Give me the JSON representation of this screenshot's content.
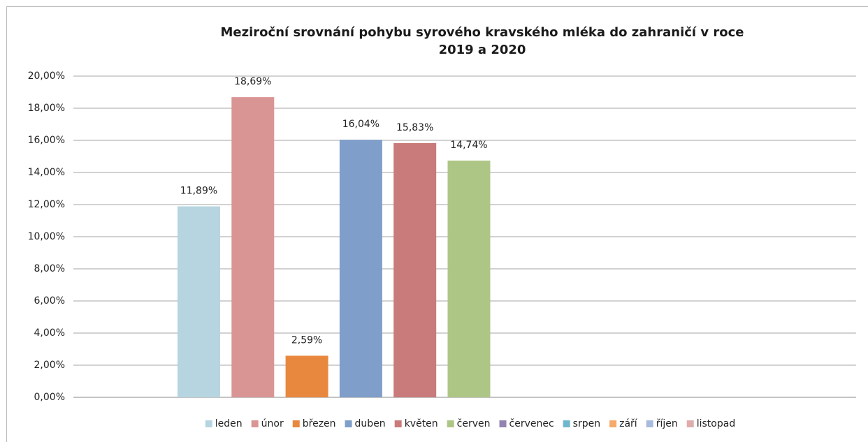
{
  "chart_data": {
    "type": "bar",
    "title": "Meziroční srovnání pohybu syrového kravského mléka do zahraničí v roce 2019 a 2020",
    "categories": [
      null
    ],
    "series": [
      {
        "name": "leden",
        "color": "#b7d5e0",
        "values": [
          11.89
        ],
        "value_labels": [
          "11,89%"
        ]
      },
      {
        "name": "únor",
        "color": "#d99594",
        "values": [
          18.69
        ],
        "value_labels": [
          "18,69%"
        ]
      },
      {
        "name": "březen",
        "color": "#e8883f",
        "values": [
          2.59
        ],
        "value_labels": [
          "2,59%"
        ]
      },
      {
        "name": "duben",
        "color": "#7f9ec9",
        "values": [
          16.04
        ],
        "value_labels": [
          "16,04%"
        ]
      },
      {
        "name": "květen",
        "color": "#c87b7a",
        "values": [
          15.83
        ],
        "value_labels": [
          "15,83%"
        ]
      },
      {
        "name": "červen",
        "color": "#adc686",
        "values": [
          14.74
        ],
        "value_labels": [
          "14,74%"
        ]
      },
      {
        "name": "červenec",
        "color": "#9383b1",
        "values": [
          null
        ],
        "value_labels": [
          null
        ]
      },
      {
        "name": "srpen",
        "color": "#6fb8cc",
        "values": [
          null
        ],
        "value_labels": [
          null
        ]
      },
      {
        "name": "září",
        "color": "#f5a96a",
        "values": [
          null
        ],
        "value_labels": [
          null
        ]
      },
      {
        "name": "říjen",
        "color": "#a9bbdd",
        "values": [
          null
        ],
        "value_labels": [
          null
        ]
      },
      {
        "name": "listopad",
        "color": "#dfacac",
        "values": [
          null
        ],
        "value_labels": [
          null
        ]
      }
    ],
    "ylim": [
      0,
      20
    ],
    "yticks": [
      {
        "value": 0,
        "label": "0,00%"
      },
      {
        "value": 2,
        "label": "2,00%"
      },
      {
        "value": 4,
        "label": "4,00%"
      },
      {
        "value": 6,
        "label": "6,00%"
      },
      {
        "value": 8,
        "label": "8,00%"
      },
      {
        "value": 10,
        "label": "10,00%"
      },
      {
        "value": 12,
        "label": "12,00%"
      },
      {
        "value": 14,
        "label": "14,00%"
      },
      {
        "value": 16,
        "label": "16,00%"
      },
      {
        "value": 18,
        "label": "18,00%"
      },
      {
        "value": 20,
        "label": "20,00%"
      }
    ],
    "grid": true,
    "legend": "bottom"
  }
}
